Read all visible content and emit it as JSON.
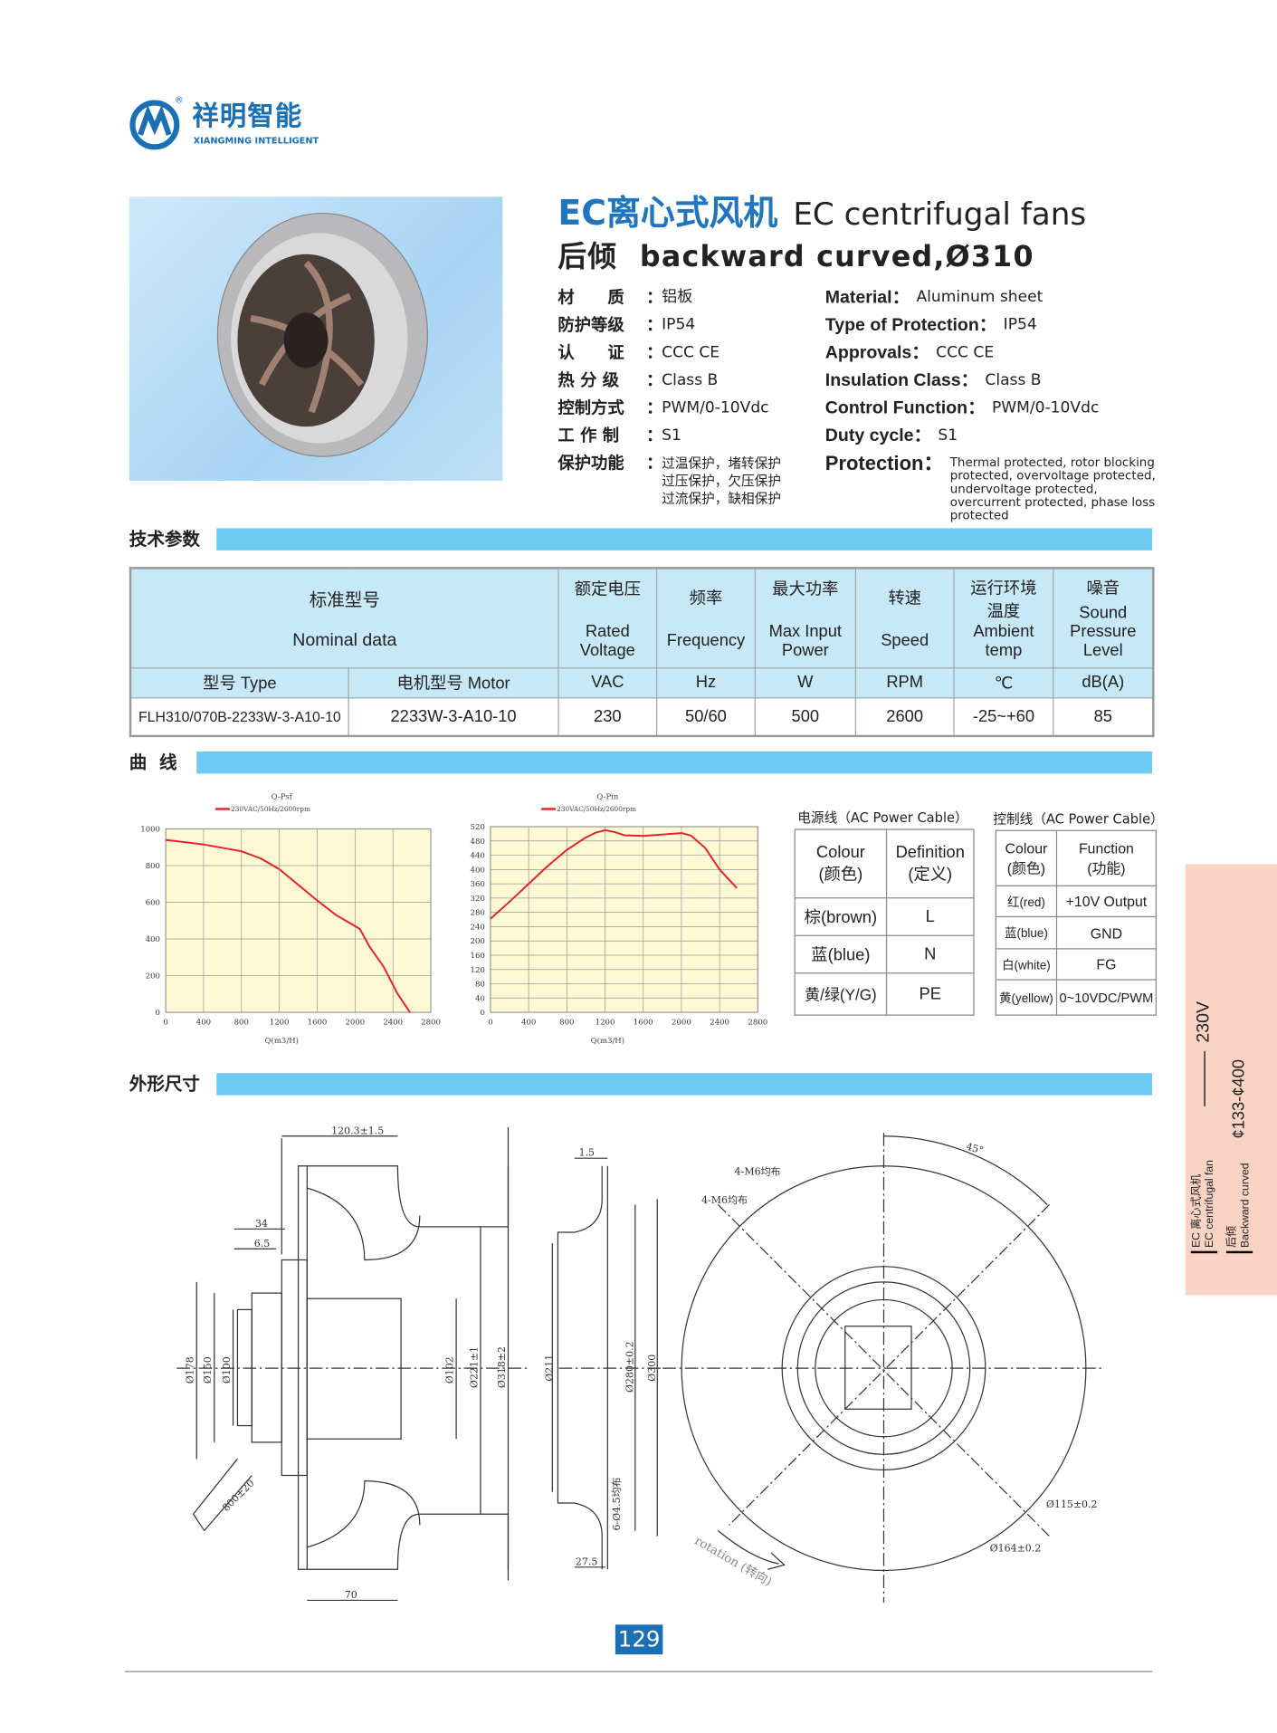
{
  "logo": {
    "cn": "祥明智能",
    "en": "XIANGMING INTELLIGENT",
    "mark": "®"
  },
  "title": {
    "cn": "EC离心式风机",
    "en": "EC centrifugal fans",
    "sub_cn": "后倾",
    "sub_en": "backward curved,Ø310"
  },
  "specs_cn": [
    {
      "label": "材　　质",
      "value": "铝板"
    },
    {
      "label": "防护等级",
      "value": "IP54"
    },
    {
      "label": "认　　证",
      "value": "CCC  CE"
    },
    {
      "label": "热 分 级",
      "value": "Class  B"
    },
    {
      "label": "控制方式",
      "value": "PWM/0-10Vdc"
    },
    {
      "label": "工 作 制",
      "value": "S1"
    },
    {
      "label": "保护功能",
      "value": "过温保护，堵转保护\n过压保护，欠压保护\n过流保护，缺相保护"
    }
  ],
  "specs_en": [
    {
      "label": "Material：",
      "value": "Aluminum sheet"
    },
    {
      "label": "Type of Protection：",
      "value": "IP54"
    },
    {
      "label": "Approvals：",
      "value": "CCC  CE"
    },
    {
      "label": "Insulation Class：",
      "value": "Class  B"
    },
    {
      "label": "Control Function：",
      "value": "PWM/0-10Vdc"
    },
    {
      "label": "Duty cycle：",
      "value": "S1"
    },
    {
      "label": "Protection：",
      "value": "Thermal protected, rotor blocking protected, overvoltage protected, undervoltage protected, overcurrent protected, phase loss protected"
    }
  ],
  "sections": {
    "tech": "技术参数",
    "curve": "曲  线",
    "dims": "外形尺寸"
  },
  "spec_table": {
    "nominal_cn": "标准型号",
    "nominal_en": "Nominal  data",
    "columns": [
      {
        "cn": "额定电压",
        "en": "Rated Voltage",
        "unit": "VAC"
      },
      {
        "cn": "频率",
        "en": "Frequency",
        "unit": "Hz"
      },
      {
        "cn": "最大功率",
        "en": "Max Input Power",
        "unit": "W"
      },
      {
        "cn": "转速",
        "en": "Speed",
        "unit": "RPM"
      },
      {
        "cn": "运行环境温度",
        "en": "Ambient temp",
        "unit": "℃"
      },
      {
        "cn": "噪音",
        "en": "Sound Pressure Level",
        "unit": "dB(A)"
      }
    ],
    "type_header": "型号 Type",
    "motor_header": "电机型号  Motor",
    "rows": [
      {
        "type": "FLH310/070B-2233W-3-A10-10",
        "motor": "2233W-3-A10-10",
        "values": [
          "230",
          "50/60",
          "500",
          "2600",
          "-25~+60",
          "85"
        ]
      }
    ]
  },
  "chart_data": [
    {
      "type": "line",
      "title": "Q-Psf",
      "xlabel": "Q(m3/H)",
      "ylabel": "",
      "xlim": [
        0,
        2800
      ],
      "ylim": [
        0,
        1000
      ],
      "grid": true,
      "legend": "top",
      "xticks": [
        "0",
        "400",
        "800",
        "1200",
        "1600",
        "2000",
        "2400",
        "2800"
      ],
      "yticks": [
        "0",
        "200",
        "400",
        "600",
        "800",
        "1000"
      ],
      "series": [
        {
          "name": "230VAC/50Hz/2600rpm",
          "color": "#e8202a",
          "x": [
            0,
            400,
            800,
            1000,
            1200,
            1400,
            1600,
            1800,
            1900,
            2050,
            2150,
            2300,
            2450,
            2580
          ],
          "y": [
            940,
            915,
            878,
            840,
            780,
            695,
            610,
            530,
            500,
            455,
            360,
            250,
            100,
            0
          ]
        }
      ]
    },
    {
      "type": "line",
      "title": "Q-Pin",
      "xlabel": "Q(m3/H)",
      "ylabel": "",
      "xlim": [
        0,
        2800
      ],
      "ylim": [
        0,
        520
      ],
      "grid": true,
      "legend": "top",
      "xticks": [
        "0",
        "400",
        "800",
        "1200",
        "1600",
        "2000",
        "2400",
        "2800"
      ],
      "yticks": [
        "0",
        "40",
        "80",
        "120",
        "160",
        "200",
        "240",
        "280",
        "320",
        "360",
        "400",
        "440",
        "480",
        "520"
      ],
      "series": [
        {
          "name": "230VAC/50Hz/2600rpm",
          "color": "#e8202a",
          "x": [
            0,
            200,
            400,
            600,
            800,
            1000,
            1100,
            1200,
            1300,
            1400,
            1600,
            1800,
            2000,
            2100,
            2250,
            2400,
            2580
          ],
          "y": [
            262,
            310,
            360,
            410,
            455,
            490,
            503,
            510,
            505,
            496,
            494,
            498,
            502,
            495,
            460,
            400,
            348
          ]
        }
      ]
    }
  ],
  "power_cable": {
    "caption": "电源线（AC Power Cable）",
    "headers": [
      "Colour\n(颜色)",
      "Definition\n(定义)"
    ],
    "rows": [
      [
        "棕(brown)",
        "L"
      ],
      [
        "蓝(blue)",
        "N"
      ],
      [
        "黄/绿(Y/G)",
        "PE"
      ]
    ]
  },
  "control_cable": {
    "caption": "控制线（AC Power Cable）",
    "headers": [
      "Colour\n(颜色)",
      "Function\n(功能)"
    ],
    "rows": [
      [
        "红(red)",
        "+10V Output"
      ],
      [
        "蓝(blue)",
        "GND"
      ],
      [
        "白(white)",
        "FG"
      ],
      [
        "黄(yellow)",
        "0~10VDC/PWM"
      ]
    ]
  },
  "drawing": {
    "side": {
      "d1": "120.3±1.5",
      "d2": "34",
      "d3": "6.5",
      "d4": "Ø178",
      "d5": "Ø150",
      "d6": "Ø100",
      "d7": "800±20",
      "d8": "Ø102",
      "d9": "Ø221±1",
      "d10": "Ø318±2",
      "d11": "70"
    },
    "mid": {
      "d1": "1.5",
      "d2": "Ø211",
      "d3": "Ø280±0.2",
      "d4": "Ø300",
      "d5": "6-Ø4.5均布",
      "d6": "27.5"
    },
    "front": {
      "angle": "45°",
      "m1": "4-M6均布",
      "m2": "4-M6均布",
      "d1": "Ø115±0.2",
      "d2": "Ø164±0.2",
      "rotation": "rotation (转向)"
    }
  },
  "side_tab": {
    "cn": "EC 离心式风机",
    "en": "EC centrifugal fan",
    "sub_cn": "后倾",
    "sub_en": "Backward curved",
    "voltage": "230V",
    "range": "¢133-¢400"
  },
  "page_number": "129",
  "colors": {
    "brand": "#1a6fb5",
    "section_bar": "#6dcbf2",
    "table_header": "#c7e8f7",
    "chart_bg": "#fef9d5",
    "curve": "#e8202a",
    "side_tab": "#f9d3c3"
  }
}
